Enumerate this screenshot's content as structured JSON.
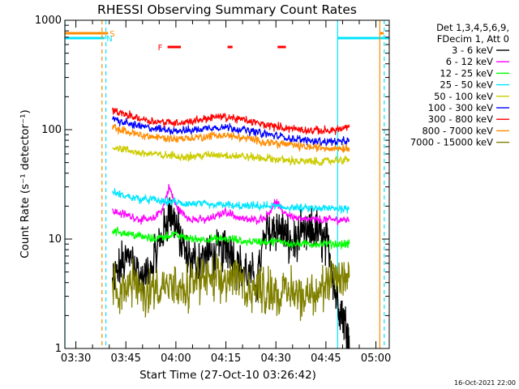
{
  "chart_data": {
    "type": "line",
    "title": "RHESSI Observing Summary Count Rates",
    "xlabel": "Start Time (27-Oct-10 03:26:42)",
    "ylabel": "Count Rate (s⁻¹ detector⁻¹)",
    "xlim": [
      "03:26:42",
      "05:04:00"
    ],
    "ylim": [
      1,
      1000
    ],
    "yscale": "log",
    "x_tick_labels": [
      "03:30",
      "03:45",
      "04:00",
      "04:15",
      "04:30",
      "04:45",
      "05:00"
    ],
    "y_tick_labels": [
      "1",
      "10",
      "100",
      "1000"
    ],
    "legend_header": [
      "Det 1,3,4,5,6,9,",
      "FDecim 1, Att 0"
    ],
    "legend_placement": "right",
    "timestamp": "16-Oct-2021 22:00",
    "flags": [
      {
        "label": "S",
        "color": "#ff8c00",
        "segments": [
          [
            "03:26:42",
            "03:39:40"
          ],
          [
            "05:01:20",
            "05:02:20"
          ]
        ]
      },
      {
        "label": "N",
        "color": "#00e5ff",
        "segments": [
          [
            "03:26:42",
            "03:38:40"
          ],
          [
            "04:48:30",
            "05:04:00"
          ]
        ]
      },
      {
        "label": "F",
        "color": "#ff0000",
        "segments": [
          [
            "03:57:30",
            "04:01:30"
          ],
          [
            "04:15:30",
            "04:17:00"
          ],
          [
            "04:30:30",
            "04:33:00"
          ]
        ]
      }
    ],
    "vertical_lines": [
      {
        "time": "03:26:42",
        "color": "#00e5ff",
        "style": "solid"
      },
      {
        "time": "03:37:50",
        "color": "#ff8c00",
        "style": "dashed"
      },
      {
        "time": "03:39:00",
        "color": "#00e5ff",
        "style": "dashed"
      },
      {
        "time": "04:48:30",
        "color": "#00e5ff",
        "style": "solid"
      },
      {
        "time": "05:01:10",
        "color": "#ff8c00",
        "style": "solid"
      },
      {
        "time": "05:02:30",
        "color": "#00e5ff",
        "style": "dashed"
      }
    ],
    "series": [
      {
        "name": "3 - 6 keV",
        "color": "#000000",
        "points": [
          [
            "03:41:00",
            4
          ],
          [
            "03:44:00",
            6
          ],
          [
            "03:47:00",
            7
          ],
          [
            "03:50:00",
            4
          ],
          [
            "03:53:00",
            6
          ],
          [
            "03:56:00",
            11
          ],
          [
            "03:58:00",
            18
          ],
          [
            "04:00:00",
            14
          ],
          [
            "04:02:00",
            8
          ],
          [
            "04:05:00",
            6
          ],
          [
            "04:08:00",
            7
          ],
          [
            "04:11:00",
            7
          ],
          [
            "04:14:00",
            8
          ],
          [
            "04:16:00",
            9
          ],
          [
            "04:18:00",
            6
          ],
          [
            "04:21:00",
            5
          ],
          [
            "04:24:00",
            4
          ],
          [
            "04:27:00",
            11
          ],
          [
            "04:30:00",
            13
          ],
          [
            "04:32:00",
            12
          ],
          [
            "04:34:00",
            9
          ],
          [
            "04:37:00",
            10
          ],
          [
            "04:40:00",
            11
          ],
          [
            "04:42:00",
            12
          ],
          [
            "04:44:00",
            10
          ],
          [
            "04:46:00",
            8
          ],
          [
            "04:48:00",
            3
          ],
          [
            "04:50:00",
            2
          ],
          [
            "04:51:30",
            1.4
          ],
          [
            "04:52:00",
            1
          ]
        ]
      },
      {
        "name": "6 - 12 keV",
        "color": "#ff00ff",
        "points": [
          [
            "03:41:00",
            18
          ],
          [
            "03:44:00",
            17
          ],
          [
            "03:47:00",
            16
          ],
          [
            "03:50:00",
            15
          ],
          [
            "03:53:00",
            15
          ],
          [
            "03:56:00",
            19
          ],
          [
            "03:58:00",
            30
          ],
          [
            "04:00:00",
            20
          ],
          [
            "04:03:00",
            16
          ],
          [
            "04:06:00",
            15
          ],
          [
            "04:09:00",
            15
          ],
          [
            "04:12:00",
            16
          ],
          [
            "04:15:00",
            18
          ],
          [
            "04:18:00",
            16
          ],
          [
            "04:21:00",
            15
          ],
          [
            "04:24:00",
            15
          ],
          [
            "04:27:00",
            16
          ],
          [
            "04:30:00",
            22
          ],
          [
            "04:32:00",
            18
          ],
          [
            "04:35:00",
            16
          ],
          [
            "04:38:00",
            15
          ],
          [
            "04:41:00",
            15
          ],
          [
            "04:44:00",
            15
          ],
          [
            "04:47:00",
            15
          ],
          [
            "04:50:00",
            15
          ],
          [
            "04:52:00",
            15
          ]
        ]
      },
      {
        "name": "12 - 25 keV",
        "color": "#00ff00",
        "points": [
          [
            "03:41:00",
            12
          ],
          [
            "03:44:00",
            11.5
          ],
          [
            "03:47:00",
            11
          ],
          [
            "03:50:00",
            10.5
          ],
          [
            "03:53:00",
            10
          ],
          [
            "03:56:00",
            10.5
          ],
          [
            "03:59:00",
            11
          ],
          [
            "04:02:00",
            10.5
          ],
          [
            "04:05:00",
            10
          ],
          [
            "04:08:00",
            10
          ],
          [
            "04:11:00",
            10
          ],
          [
            "04:14:00",
            10
          ],
          [
            "04:17:00",
            10
          ],
          [
            "04:20:00",
            9.5
          ],
          [
            "04:23:00",
            9.5
          ],
          [
            "04:26:00",
            9.5
          ],
          [
            "04:29:00",
            9.5
          ],
          [
            "04:32:00",
            9.5
          ],
          [
            "04:35:00",
            9
          ],
          [
            "04:38:00",
            9
          ],
          [
            "04:41:00",
            9
          ],
          [
            "04:44:00",
            9
          ],
          [
            "04:47:00",
            9
          ],
          [
            "04:50:00",
            9
          ],
          [
            "04:52:00",
            9
          ]
        ]
      },
      {
        "name": "25 - 50 keV",
        "color": "#00e5ff",
        "points": [
          [
            "03:41:00",
            27
          ],
          [
            "03:44:00",
            25
          ],
          [
            "03:47:00",
            24
          ],
          [
            "03:50:00",
            23
          ],
          [
            "03:53:00",
            23
          ],
          [
            "03:56:00",
            22
          ],
          [
            "03:59:00",
            22
          ],
          [
            "04:02:00",
            21
          ],
          [
            "04:05:00",
            21
          ],
          [
            "04:08:00",
            21
          ],
          [
            "04:11:00",
            20
          ],
          [
            "04:14:00",
            21
          ],
          [
            "04:17:00",
            20
          ],
          [
            "04:20:00",
            20
          ],
          [
            "04:23:00",
            20
          ],
          [
            "04:26:00",
            20
          ],
          [
            "04:29:00",
            20
          ],
          [
            "04:32:00",
            19.5
          ],
          [
            "04:35:00",
            19.5
          ],
          [
            "04:38:00",
            19
          ],
          [
            "04:41:00",
            19
          ],
          [
            "04:44:00",
            19
          ],
          [
            "04:47:00",
            19
          ],
          [
            "04:50:00",
            19
          ],
          [
            "04:52:00",
            19
          ]
        ]
      },
      {
        "name": "50 - 100 keV",
        "color": "#cccc00",
        "points": [
          [
            "03:41:00",
            70
          ],
          [
            "03:44:00",
            66
          ],
          [
            "03:47:00",
            63
          ],
          [
            "03:50:00",
            61
          ],
          [
            "03:53:00",
            60
          ],
          [
            "03:56:00",
            58
          ],
          [
            "03:59:00",
            58
          ],
          [
            "04:02:00",
            57
          ],
          [
            "04:05:00",
            57
          ],
          [
            "04:08:00",
            58
          ],
          [
            "04:11:00",
            59
          ],
          [
            "04:14:00",
            59
          ],
          [
            "04:17:00",
            58
          ],
          [
            "04:20:00",
            57
          ],
          [
            "04:23:00",
            56
          ],
          [
            "04:26:00",
            55
          ],
          [
            "04:29:00",
            54
          ],
          [
            "04:32:00",
            53
          ],
          [
            "04:35:00",
            52
          ],
          [
            "04:38:00",
            51
          ],
          [
            "04:41:00",
            51
          ],
          [
            "04:44:00",
            51
          ],
          [
            "04:47:00",
            52
          ],
          [
            "04:50:00",
            53
          ],
          [
            "04:52:00",
            54
          ]
        ]
      },
      {
        "name": "100 - 300 keV",
        "color": "#0000ff",
        "points": [
          [
            "03:41:00",
            125
          ],
          [
            "03:44:00",
            117
          ],
          [
            "03:47:00",
            111
          ],
          [
            "03:50:00",
            106
          ],
          [
            "03:53:00",
            103
          ],
          [
            "03:56:00",
            100
          ],
          [
            "03:59:00",
            99
          ],
          [
            "04:02:00",
            98
          ],
          [
            "04:05:00",
            99
          ],
          [
            "04:08:00",
            102
          ],
          [
            "04:11:00",
            105
          ],
          [
            "04:14:00",
            106
          ],
          [
            "04:17:00",
            104
          ],
          [
            "04:20:00",
            100
          ],
          [
            "04:23:00",
            96
          ],
          [
            "04:26:00",
            92
          ],
          [
            "04:29:00",
            89
          ],
          [
            "04:32:00",
            86
          ],
          [
            "04:35:00",
            83
          ],
          [
            "04:38:00",
            80
          ],
          [
            "04:41:00",
            79
          ],
          [
            "04:44:00",
            78
          ],
          [
            "04:47:00",
            78
          ],
          [
            "04:50:00",
            78
          ],
          [
            "04:52:00",
            78
          ]
        ]
      },
      {
        "name": "300 - 800 keV",
        "color": "#ff0000",
        "points": [
          [
            "03:41:00",
            150
          ],
          [
            "03:44:00",
            140
          ],
          [
            "03:47:00",
            132
          ],
          [
            "03:50:00",
            125
          ],
          [
            "03:53:00",
            120
          ],
          [
            "03:56:00",
            117
          ],
          [
            "03:59:00",
            116
          ],
          [
            "04:02:00",
            117
          ],
          [
            "04:05:00",
            120
          ],
          [
            "04:08:00",
            125
          ],
          [
            "04:11:00",
            130
          ],
          [
            "04:14:00",
            131
          ],
          [
            "04:17:00",
            128
          ],
          [
            "04:20:00",
            123
          ],
          [
            "04:23:00",
            117
          ],
          [
            "04:26:00",
            112
          ],
          [
            "04:29:00",
            108
          ],
          [
            "04:32:00",
            105
          ],
          [
            "04:35:00",
            102
          ],
          [
            "04:38:00",
            100
          ],
          [
            "04:41:00",
            98
          ],
          [
            "04:44:00",
            98
          ],
          [
            "04:47:00",
            99
          ],
          [
            "04:50:00",
            102
          ],
          [
            "04:52:00",
            105
          ]
        ]
      },
      {
        "name": "800 - 7000 keV",
        "color": "#ff8c00",
        "points": [
          [
            "03:41:00",
            105
          ],
          [
            "03:44:00",
            98
          ],
          [
            "03:47:00",
            93
          ],
          [
            "03:50:00",
            89
          ],
          [
            "03:53:00",
            86
          ],
          [
            "03:56:00",
            84
          ],
          [
            "03:59:00",
            83
          ],
          [
            "04:02:00",
            83
          ],
          [
            "04:05:00",
            84
          ],
          [
            "04:08:00",
            86
          ],
          [
            "04:11:00",
            88
          ],
          [
            "04:14:00",
            89
          ],
          [
            "04:17:00",
            87
          ],
          [
            "04:20:00",
            84
          ],
          [
            "04:23:00",
            81
          ],
          [
            "04:26:00",
            78
          ],
          [
            "04:29:00",
            76
          ],
          [
            "04:32:00",
            74
          ],
          [
            "04:35:00",
            72
          ],
          [
            "04:38:00",
            70
          ],
          [
            "04:41:00",
            69
          ],
          [
            "04:44:00",
            68
          ],
          [
            "04:47:00",
            68
          ],
          [
            "04:50:00",
            68
          ],
          [
            "04:52:00",
            68
          ]
        ]
      },
      {
        "name": "7000 - 15000 keV",
        "color": "#808000",
        "points": [
          [
            "03:41:00",
            4
          ],
          [
            "03:44:00",
            3.5
          ],
          [
            "03:47:00",
            4
          ],
          [
            "03:50:00",
            3
          ],
          [
            "03:53:00",
            3.5
          ],
          [
            "03:56:00",
            4
          ],
          [
            "03:59:00",
            3.5
          ],
          [
            "04:02:00",
            3
          ],
          [
            "04:05:00",
            4
          ],
          [
            "04:08:00",
            4.5
          ],
          [
            "04:11:00",
            4
          ],
          [
            "04:14:00",
            4
          ],
          [
            "04:17:00",
            4.5
          ],
          [
            "04:20:00",
            4
          ],
          [
            "04:23:00",
            3.5
          ],
          [
            "04:26:00",
            3.5
          ],
          [
            "04:29:00",
            3.5
          ],
          [
            "04:32:00",
            3
          ],
          [
            "04:35:00",
            3.5
          ],
          [
            "04:38:00",
            3
          ],
          [
            "04:41:00",
            3.5
          ],
          [
            "04:44:00",
            3.5
          ],
          [
            "04:47:00",
            4
          ],
          [
            "04:50:00",
            4.5
          ],
          [
            "04:52:00",
            4.5
          ]
        ]
      }
    ]
  }
}
